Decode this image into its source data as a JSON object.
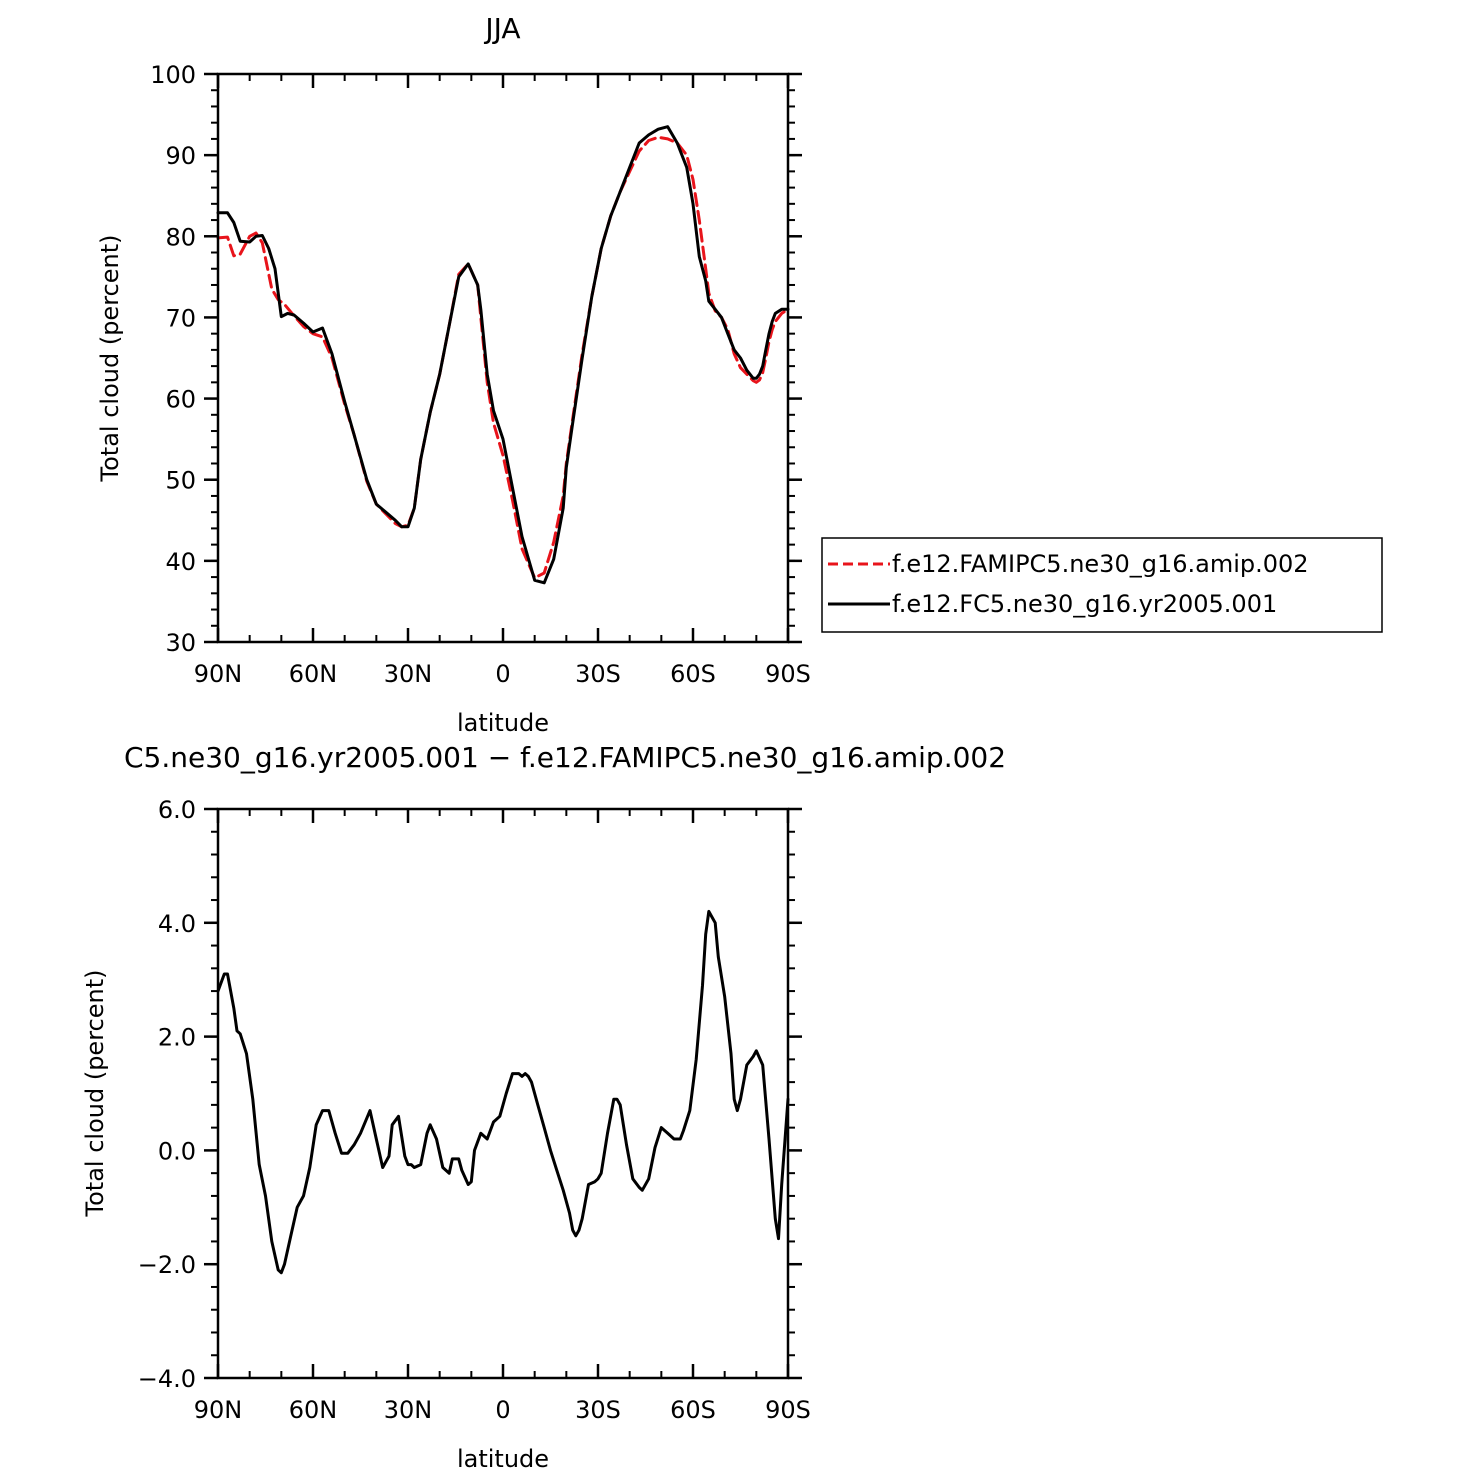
{
  "chart_data": [
    {
      "type": "line",
      "title": "JJA",
      "xlabel": "latitude",
      "ylabel": "Total cloud (percent)",
      "xlim": [
        90,
        -90
      ],
      "ylim": [
        30,
        100
      ],
      "x_ticks": [
        90,
        60,
        30,
        0,
        -30,
        -60,
        -90
      ],
      "x_tick_labels": [
        "90N",
        "60N",
        "30N",
        "0",
        "30S",
        "60S",
        "90S"
      ],
      "y_ticks": [
        30,
        40,
        50,
        60,
        70,
        80,
        90,
        100
      ],
      "y_tick_labels": [
        "30",
        "40",
        "50",
        "60",
        "70",
        "80",
        "90",
        "100"
      ],
      "legend_position": "right",
      "series": [
        {
          "name": "f.e12.FAMIPC5.ne30_g16.amip.002",
          "color": "#e8141b",
          "dash": "dashed",
          "x": [
            90,
            87,
            85,
            83,
            80,
            78,
            76,
            73,
            71,
            69,
            66,
            63,
            60,
            57,
            54,
            50,
            47,
            43,
            40,
            37,
            34,
            32,
            30,
            28,
            26,
            23,
            20,
            17,
            14,
            11,
            8,
            7,
            6,
            5,
            3,
            0,
            -3,
            -6,
            -10,
            -13,
            -16,
            -19,
            -20,
            -22,
            -25,
            -28,
            -31,
            -34,
            -37,
            -40,
            -43,
            -46,
            -49,
            -52,
            -55,
            -58,
            -60,
            -62,
            -64,
            -65,
            -67,
            -69,
            -71,
            -73,
            -75,
            -77,
            -79,
            -80,
            -81,
            -82,
            -83,
            -84,
            -85,
            -86,
            -88,
            -90
          ],
          "y": [
            79.8,
            79.9,
            77.6,
            77.8,
            80.0,
            80.4,
            79.2,
            73.5,
            72.2,
            71.6,
            70.2,
            68.9,
            68.0,
            67.6,
            65.0,
            59.3,
            55.5,
            49.8,
            47.0,
            45.8,
            44.6,
            44.2,
            44.4,
            46.5,
            52.5,
            58.3,
            63.0,
            69.0,
            75.3,
            76.6,
            74.0,
            70.0,
            66.0,
            62.0,
            57.0,
            53.0,
            47.5,
            41.5,
            37.9,
            38.5,
            42.3,
            48.0,
            52.0,
            57.5,
            65.5,
            72.5,
            78.5,
            82.5,
            85.5,
            88.0,
            90.5,
            91.8,
            92.2,
            92.0,
            91.5,
            90.0,
            87.0,
            82.0,
            76.0,
            73.0,
            70.8,
            70.0,
            68.5,
            65.5,
            63.8,
            63.0,
            62.2,
            62.0,
            62.3,
            63.2,
            65.0,
            67.0,
            68.5,
            69.5,
            70.5,
            71.0
          ]
        },
        {
          "name": "f.e12.FC5.ne30_g16.yr2005.001",
          "color": "#000000",
          "dash": "solid",
          "x": [
            90,
            87,
            85,
            83,
            80,
            78,
            76,
            74,
            72,
            70,
            68,
            66,
            63,
            60,
            57,
            54,
            50,
            47,
            43,
            40,
            37,
            34,
            32,
            30,
            28,
            26,
            23,
            20,
            17,
            14,
            11,
            8,
            7,
            6,
            5,
            3,
            0,
            -3,
            -6,
            -10,
            -13,
            -16,
            -19,
            -20,
            -22,
            -25,
            -28,
            -31,
            -34,
            -37,
            -40,
            -43,
            -46,
            -49,
            -52,
            -55,
            -58,
            -60,
            -62,
            -64,
            -65,
            -67,
            -69,
            -71,
            -73,
            -75,
            -77,
            -79,
            -80,
            -81,
            -82,
            -83,
            -84,
            -85,
            -86,
            -88,
            -90
          ],
          "y": [
            82.9,
            82.9,
            81.7,
            79.4,
            79.3,
            80.0,
            80.1,
            78.5,
            76.0,
            70.1,
            70.5,
            70.3,
            69.3,
            68.2,
            68.7,
            65.5,
            59.6,
            55.5,
            50.0,
            47.0,
            46.0,
            45.0,
            44.2,
            44.2,
            46.5,
            52.5,
            58.3,
            63.0,
            69.0,
            75.0,
            76.6,
            74.0,
            71.0,
            67.0,
            63.0,
            58.5,
            55.0,
            49.0,
            43.0,
            37.6,
            37.3,
            40.2,
            46.5,
            51.5,
            57.0,
            65.0,
            72.5,
            78.5,
            82.5,
            85.5,
            88.5,
            91.5,
            92.5,
            93.2,
            93.5,
            91.5,
            88.5,
            84.0,
            77.5,
            74.5,
            72.0,
            71.0,
            70.0,
            68.0,
            66.0,
            65.0,
            63.5,
            62.5,
            62.5,
            63.0,
            64.0,
            66.0,
            68.0,
            69.5,
            70.5,
            71.0,
            71.0
          ]
        }
      ]
    },
    {
      "type": "line",
      "title": "C5.ne30_g16.yr2005.001 − f.e12.FAMIPC5.ne30_g16.amip.002",
      "xlabel": "latitude",
      "ylabel": "Total cloud (percent)",
      "xlim": [
        90,
        -90
      ],
      "ylim": [
        -4.0,
        6.0
      ],
      "x_ticks": [
        90,
        60,
        30,
        0,
        -30,
        -60,
        -90
      ],
      "x_tick_labels": [
        "90N",
        "60N",
        "30N",
        "0",
        "30S",
        "60S",
        "90S"
      ],
      "y_ticks": [
        -4.0,
        -2.0,
        0.0,
        2.0,
        4.0,
        6.0
      ],
      "y_tick_labels": [
        "−4.0",
        "−2.0",
        "0.0",
        "2.0",
        "4.0",
        "6.0"
      ],
      "series": [
        {
          "color": "#000000",
          "dash": "solid",
          "x": [
            90,
            88,
            87,
            85,
            84,
            83,
            81,
            79,
            77,
            75,
            73,
            71,
            70,
            69,
            67,
            65,
            63,
            61,
            59,
            57,
            55,
            53,
            51,
            49,
            47,
            45,
            42,
            40,
            38,
            36,
            35,
            33,
            31,
            30,
            29,
            28,
            26,
            24,
            23,
            21,
            19,
            17,
            16,
            14,
            13,
            11,
            10,
            9,
            7,
            5,
            3,
            1,
            -1,
            -3,
            -5,
            -6,
            -7,
            -8,
            -9,
            -11,
            -13,
            -15,
            -17,
            -19,
            -21,
            -22,
            -23,
            -24,
            -25,
            -27,
            -29,
            -30,
            -31,
            -33,
            -35,
            -36,
            -37,
            -39,
            -41,
            -43,
            -44,
            -46,
            -48,
            -50,
            -52,
            -54,
            -56,
            -57,
            -59,
            -61,
            -63,
            -64,
            -65,
            -66,
            -67,
            -68,
            -70,
            -72,
            -73,
            -74,
            -75,
            -77,
            -79,
            -80,
            -82,
            -84,
            -86,
            -87,
            -88,
            -90
          ],
          "y": [
            2.8,
            3.1,
            3.1,
            2.5,
            2.1,
            2.05,
            1.7,
            0.9,
            -0.25,
            -0.8,
            -1.6,
            -2.1,
            -2.15,
            -2.0,
            -1.5,
            -1.0,
            -0.8,
            -0.3,
            0.45,
            0.7,
            0.7,
            0.3,
            -0.05,
            -0.05,
            0.1,
            0.3,
            0.7,
            0.2,
            -0.3,
            -0.1,
            0.45,
            0.6,
            -0.1,
            -0.25,
            -0.25,
            -0.3,
            -0.25,
            0.3,
            0.45,
            0.2,
            -0.3,
            -0.4,
            -0.15,
            -0.15,
            -0.35,
            -0.6,
            -0.55,
            0.0,
            0.3,
            0.2,
            0.5,
            0.6,
            1.0,
            1.35,
            1.35,
            1.3,
            1.35,
            1.3,
            1.2,
            0.8,
            0.4,
            0.0,
            -0.35,
            -0.7,
            -1.1,
            -1.4,
            -1.5,
            -1.4,
            -1.2,
            -0.6,
            -0.55,
            -0.5,
            -0.4,
            0.3,
            0.9,
            0.9,
            0.8,
            0.1,
            -0.5,
            -0.65,
            -0.7,
            -0.5,
            0.05,
            0.4,
            0.3,
            0.2,
            0.2,
            0.35,
            0.7,
            1.6,
            2.9,
            3.8,
            4.2,
            4.1,
            4.0,
            3.4,
            2.7,
            1.7,
            0.9,
            0.7,
            0.9,
            1.5,
            1.65,
            1.75,
            1.5,
            0.2,
            -1.2,
            -1.55,
            -0.6,
            0.9
          ]
        }
      ]
    }
  ]
}
